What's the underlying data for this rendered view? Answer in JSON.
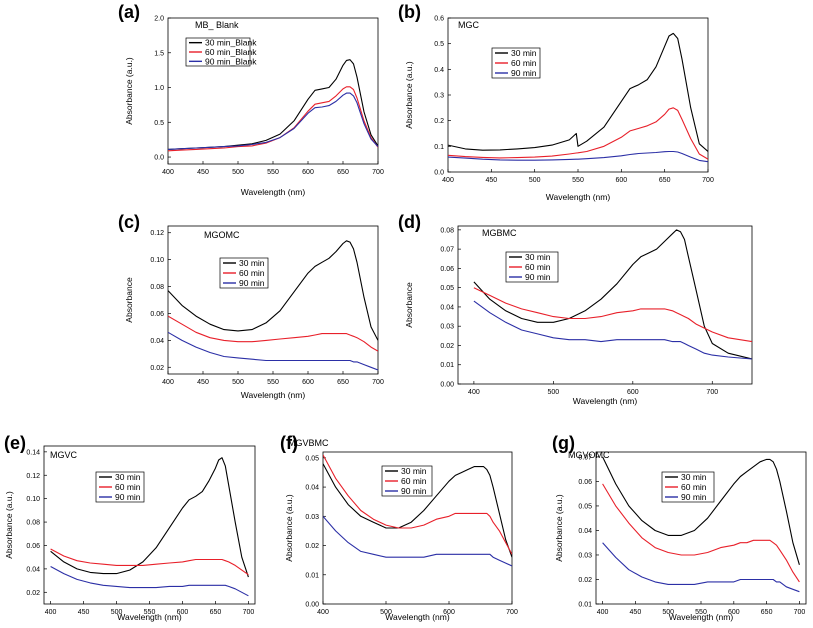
{
  "colors": {
    "series": [
      "#000000",
      "#e8202a",
      "#2b2fa6"
    ],
    "axis": "#000000",
    "background": "#ffffff"
  },
  "chart_data": [
    {
      "panel": "(a)",
      "type": "line",
      "title": "MB_ Blank",
      "xlabel": "Wavelength (nm)",
      "ylabel": "Absorbance (a.u.)",
      "xlim": [
        400,
        700
      ],
      "ylim": [
        -0.1,
        2.0
      ],
      "xticks": [
        400,
        450,
        500,
        550,
        600,
        650,
        700
      ],
      "yticks": [
        0.0,
        0.5,
        1.0,
        1.5,
        2.0
      ],
      "ytick_labels": [
        "0.0",
        "0.5",
        "1.0",
        "1.5",
        "2.0"
      ],
      "legend": "top-left",
      "x": [
        400,
        420,
        440,
        460,
        480,
        500,
        520,
        540,
        560,
        580,
        600,
        610,
        620,
        630,
        640,
        650,
        655,
        660,
        665,
        670,
        680,
        690,
        700
      ],
      "series": [
        {
          "name": "30 min_Blank",
          "values": [
            0.11,
            0.12,
            0.13,
            0.14,
            0.15,
            0.17,
            0.19,
            0.24,
            0.33,
            0.52,
            0.83,
            0.96,
            0.98,
            1.0,
            1.12,
            1.32,
            1.39,
            1.4,
            1.34,
            1.15,
            0.65,
            0.32,
            0.16
          ]
        },
        {
          "name": "60 min_Blank",
          "values": [
            0.09,
            0.1,
            0.11,
            0.12,
            0.13,
            0.15,
            0.16,
            0.2,
            0.28,
            0.42,
            0.66,
            0.76,
            0.78,
            0.8,
            0.88,
            0.98,
            1.01,
            1.01,
            0.97,
            0.85,
            0.52,
            0.28,
            0.14
          ]
        },
        {
          "name": "90 min_Blank",
          "values": [
            0.11,
            0.12,
            0.13,
            0.14,
            0.15,
            0.16,
            0.18,
            0.21,
            0.28,
            0.41,
            0.63,
            0.71,
            0.72,
            0.74,
            0.8,
            0.89,
            0.92,
            0.92,
            0.88,
            0.78,
            0.48,
            0.26,
            0.15
          ]
        }
      ]
    },
    {
      "panel": "(b)",
      "type": "line",
      "title": "MGC",
      "xlabel": "Wavelength (nm)",
      "ylabel": "Absorbance (a.u.)",
      "xlim": [
        400,
        700
      ],
      "ylim": [
        0.0,
        0.6
      ],
      "xticks": [
        400,
        450,
        500,
        550,
        600,
        650,
        700
      ],
      "yticks": [
        0.0,
        0.1,
        0.2,
        0.3,
        0.4,
        0.5,
        0.6
      ],
      "ytick_labels": [
        "0.0",
        "0.1",
        "0.2",
        "0.3",
        "0.4",
        "0.5",
        "0.6"
      ],
      "legend": "center",
      "x": [
        400,
        420,
        440,
        460,
        480,
        500,
        520,
        540,
        548,
        550,
        560,
        580,
        600,
        610,
        620,
        630,
        640,
        650,
        655,
        660,
        665,
        670,
        680,
        690,
        700
      ],
      "series": [
        {
          "name": "30 min",
          "values": [
            0.105,
            0.09,
            0.085,
            0.086,
            0.09,
            0.095,
            0.105,
            0.125,
            0.15,
            0.1,
            0.12,
            0.175,
            0.275,
            0.325,
            0.34,
            0.36,
            0.41,
            0.49,
            0.53,
            0.54,
            0.52,
            0.44,
            0.25,
            0.11,
            0.08
          ]
        },
        {
          "name": "60 min",
          "values": [
            0.065,
            0.06,
            0.057,
            0.055,
            0.056,
            0.058,
            0.062,
            0.07,
            0.074,
            0.075,
            0.08,
            0.1,
            0.135,
            0.16,
            0.17,
            0.18,
            0.195,
            0.225,
            0.245,
            0.25,
            0.24,
            0.205,
            0.13,
            0.07,
            0.05
          ]
        },
        {
          "name": "90 min",
          "values": [
            0.058,
            0.054,
            0.05,
            0.047,
            0.046,
            0.046,
            0.047,
            0.049,
            0.05,
            0.05,
            0.052,
            0.056,
            0.063,
            0.068,
            0.072,
            0.074,
            0.076,
            0.079,
            0.08,
            0.08,
            0.078,
            0.072,
            0.058,
            0.045,
            0.04
          ]
        }
      ]
    },
    {
      "panel": "(c)",
      "type": "line",
      "title": "MGOMC",
      "xlabel": "Wavelength (nm)",
      "ylabel": "Absorbance",
      "xlim": [
        400,
        700
      ],
      "ylim": [
        0.015,
        0.125
      ],
      "xticks": [
        400,
        450,
        500,
        550,
        600,
        650,
        700
      ],
      "yticks": [
        0.02,
        0.04,
        0.06,
        0.08,
        0.1,
        0.12
      ],
      "ytick_labels": [
        "0.02",
        "0.04",
        "0.06",
        "0.08",
        "0.10",
        "0.12"
      ],
      "legend": "center",
      "x": [
        400,
        420,
        440,
        460,
        480,
        500,
        520,
        540,
        560,
        580,
        600,
        610,
        620,
        630,
        640,
        650,
        655,
        660,
        665,
        670,
        680,
        690,
        700
      ],
      "series": [
        {
          "name": "30 min",
          "values": [
            0.077,
            0.066,
            0.058,
            0.052,
            0.048,
            0.047,
            0.048,
            0.053,
            0.062,
            0.076,
            0.09,
            0.095,
            0.098,
            0.101,
            0.106,
            0.112,
            0.114,
            0.113,
            0.108,
            0.098,
            0.072,
            0.05,
            0.04
          ]
        },
        {
          "name": "60 min",
          "values": [
            0.058,
            0.052,
            0.046,
            0.042,
            0.04,
            0.039,
            0.039,
            0.04,
            0.041,
            0.042,
            0.043,
            0.044,
            0.045,
            0.045,
            0.045,
            0.045,
            0.045,
            0.044,
            0.043,
            0.042,
            0.039,
            0.035,
            0.032
          ]
        },
        {
          "name": "90 min",
          "values": [
            0.046,
            0.04,
            0.035,
            0.031,
            0.028,
            0.027,
            0.026,
            0.025,
            0.025,
            0.025,
            0.025,
            0.025,
            0.025,
            0.025,
            0.025,
            0.025,
            0.025,
            0.025,
            0.024,
            0.024,
            0.022,
            0.02,
            0.018
          ]
        }
      ]
    },
    {
      "panel": "(d)",
      "type": "line",
      "title": "MGBMC",
      "xlabel": "Wavelength (nm)",
      "ylabel": "Absorbance",
      "xlim": [
        380,
        750
      ],
      "ylim": [
        0.0,
        0.082
      ],
      "xticks": [
        400,
        500,
        600,
        700
      ],
      "yticks": [
        0.0,
        0.01,
        0.02,
        0.03,
        0.04,
        0.05,
        0.06,
        0.07,
        0.08
      ],
      "ytick_labels": [
        "0.00",
        "0.01",
        "0.02",
        "0.03",
        "0.04",
        "0.05",
        "0.06",
        "0.07",
        "0.08"
      ],
      "legend": "center",
      "x": [
        400,
        420,
        440,
        460,
        480,
        500,
        520,
        540,
        560,
        580,
        600,
        610,
        620,
        630,
        640,
        650,
        655,
        660,
        665,
        670,
        680,
        690,
        700,
        720,
        750
      ],
      "series": [
        {
          "name": "30 min",
          "values": [
            0.053,
            0.044,
            0.038,
            0.034,
            0.032,
            0.032,
            0.034,
            0.038,
            0.044,
            0.052,
            0.062,
            0.066,
            0.068,
            0.07,
            0.074,
            0.078,
            0.08,
            0.079,
            0.075,
            0.066,
            0.048,
            0.03,
            0.021,
            0.016,
            0.013
          ]
        },
        {
          "name": "60 min",
          "values": [
            0.05,
            0.046,
            0.042,
            0.039,
            0.037,
            0.035,
            0.034,
            0.034,
            0.035,
            0.037,
            0.038,
            0.039,
            0.039,
            0.039,
            0.039,
            0.038,
            0.037,
            0.036,
            0.035,
            0.034,
            0.031,
            0.029,
            0.027,
            0.024,
            0.022
          ]
        },
        {
          "name": "90 min",
          "values": [
            0.043,
            0.037,
            0.032,
            0.028,
            0.026,
            0.024,
            0.023,
            0.023,
            0.022,
            0.023,
            0.023,
            0.023,
            0.023,
            0.023,
            0.023,
            0.022,
            0.022,
            0.022,
            0.021,
            0.02,
            0.018,
            0.016,
            0.015,
            0.014,
            0.013
          ]
        }
      ]
    },
    {
      "panel": "(e)",
      "type": "line",
      "title": "MGVC",
      "xlabel": "Wavelength (nm)",
      "ylabel": "Absorbance (a.u.)",
      "xlim": [
        390,
        710
      ],
      "ylim": [
        0.01,
        0.145
      ],
      "xticks": [
        400,
        450,
        500,
        550,
        600,
        650,
        700
      ],
      "yticks": [
        0.02,
        0.04,
        0.06,
        0.08,
        0.1,
        0.12,
        0.14
      ],
      "ytick_labels": [
        "0.02",
        "0.04",
        "0.06",
        "0.08",
        "0.10",
        "0.12",
        "0.14"
      ],
      "legend": "top-center",
      "x": [
        400,
        420,
        440,
        460,
        480,
        500,
        520,
        540,
        560,
        580,
        600,
        610,
        620,
        630,
        640,
        650,
        655,
        660,
        665,
        670,
        680,
        690,
        700
      ],
      "series": [
        {
          "name": "30 min",
          "values": [
            0.055,
            0.046,
            0.04,
            0.037,
            0.036,
            0.036,
            0.039,
            0.046,
            0.058,
            0.075,
            0.092,
            0.099,
            0.102,
            0.106,
            0.115,
            0.126,
            0.133,
            0.135,
            0.128,
            0.112,
            0.08,
            0.05,
            0.033
          ]
        },
        {
          "name": "60 min",
          "values": [
            0.057,
            0.051,
            0.047,
            0.045,
            0.044,
            0.043,
            0.043,
            0.043,
            0.044,
            0.045,
            0.046,
            0.047,
            0.048,
            0.048,
            0.048,
            0.048,
            0.048,
            0.048,
            0.047,
            0.046,
            0.043,
            0.039,
            0.035
          ]
        },
        {
          "name": "90 min",
          "values": [
            0.042,
            0.036,
            0.031,
            0.028,
            0.026,
            0.025,
            0.024,
            0.024,
            0.024,
            0.025,
            0.025,
            0.026,
            0.026,
            0.026,
            0.026,
            0.026,
            0.026,
            0.026,
            0.026,
            0.025,
            0.023,
            0.02,
            0.017
          ]
        }
      ]
    },
    {
      "panel": "(f)",
      "type": "line",
      "title": "MGVBMC",
      "xlabel": "Wavelength (nm)",
      "ylabel": "Absorbance (a.u.)",
      "xlim": [
        400,
        700
      ],
      "ylim": [
        0.0,
        0.052
      ],
      "xticks": [
        400,
        500,
        600,
        700
      ],
      "yticks": [
        0.0,
        0.01,
        0.02,
        0.03,
        0.04,
        0.05
      ],
      "ytick_labels": [
        "0.00",
        "0.01",
        "0.02",
        "0.03",
        "0.04",
        "0.05"
      ],
      "legend": "top-right",
      "x": [
        400,
        420,
        440,
        460,
        480,
        500,
        520,
        540,
        560,
        580,
        600,
        610,
        620,
        630,
        640,
        650,
        655,
        660,
        665,
        670,
        680,
        690,
        700
      ],
      "series": [
        {
          "name": "30 min",
          "values": [
            0.048,
            0.04,
            0.034,
            0.03,
            0.028,
            0.026,
            0.026,
            0.028,
            0.032,
            0.037,
            0.042,
            0.044,
            0.045,
            0.046,
            0.047,
            0.047,
            0.047,
            0.046,
            0.044,
            0.04,
            0.031,
            0.022,
            0.016
          ]
        },
        {
          "name": "60 min",
          "values": [
            0.051,
            0.043,
            0.037,
            0.032,
            0.029,
            0.027,
            0.026,
            0.026,
            0.027,
            0.029,
            0.03,
            0.031,
            0.031,
            0.031,
            0.031,
            0.031,
            0.031,
            0.031,
            0.03,
            0.028,
            0.025,
            0.021,
            0.017
          ]
        },
        {
          "name": "90 min",
          "values": [
            0.03,
            0.025,
            0.021,
            0.018,
            0.017,
            0.016,
            0.016,
            0.016,
            0.016,
            0.017,
            0.017,
            0.017,
            0.017,
            0.017,
            0.017,
            0.017,
            0.017,
            0.017,
            0.017,
            0.016,
            0.015,
            0.014,
            0.013
          ]
        }
      ]
    },
    {
      "panel": "(g)",
      "type": "line",
      "title": "MGVOMC",
      "xlabel": "Wavelength (nm)",
      "ylabel": "Absorbance (a.u.)",
      "xlim": [
        390,
        710
      ],
      "ylim": [
        0.01,
        0.072
      ],
      "xticks": [
        400,
        450,
        500,
        550,
        600,
        650,
        700
      ],
      "yticks": [
        0.01,
        0.02,
        0.03,
        0.04,
        0.05,
        0.06,
        0.07
      ],
      "ytick_labels": [
        "0.01",
        "0.02",
        "0.03",
        "0.04",
        "0.05",
        "0.06",
        "0.07"
      ],
      "legend": "top-right",
      "x": [
        400,
        420,
        440,
        460,
        480,
        500,
        520,
        540,
        560,
        580,
        600,
        610,
        620,
        630,
        640,
        650,
        655,
        660,
        665,
        670,
        680,
        690,
        700
      ],
      "series": [
        {
          "name": "30 min",
          "values": [
            0.07,
            0.059,
            0.05,
            0.044,
            0.04,
            0.038,
            0.038,
            0.04,
            0.045,
            0.052,
            0.059,
            0.062,
            0.064,
            0.066,
            0.068,
            0.069,
            0.069,
            0.068,
            0.065,
            0.06,
            0.048,
            0.035,
            0.026
          ]
        },
        {
          "name": "60 min",
          "values": [
            0.059,
            0.05,
            0.043,
            0.037,
            0.033,
            0.031,
            0.03,
            0.03,
            0.031,
            0.033,
            0.034,
            0.035,
            0.035,
            0.036,
            0.036,
            0.036,
            0.036,
            0.035,
            0.034,
            0.032,
            0.028,
            0.023,
            0.019
          ]
        },
        {
          "name": "90 min",
          "values": [
            0.035,
            0.029,
            0.024,
            0.021,
            0.019,
            0.018,
            0.018,
            0.018,
            0.019,
            0.019,
            0.019,
            0.02,
            0.02,
            0.02,
            0.02,
            0.02,
            0.02,
            0.02,
            0.019,
            0.019,
            0.017,
            0.016,
            0.015
          ]
        }
      ]
    }
  ]
}
